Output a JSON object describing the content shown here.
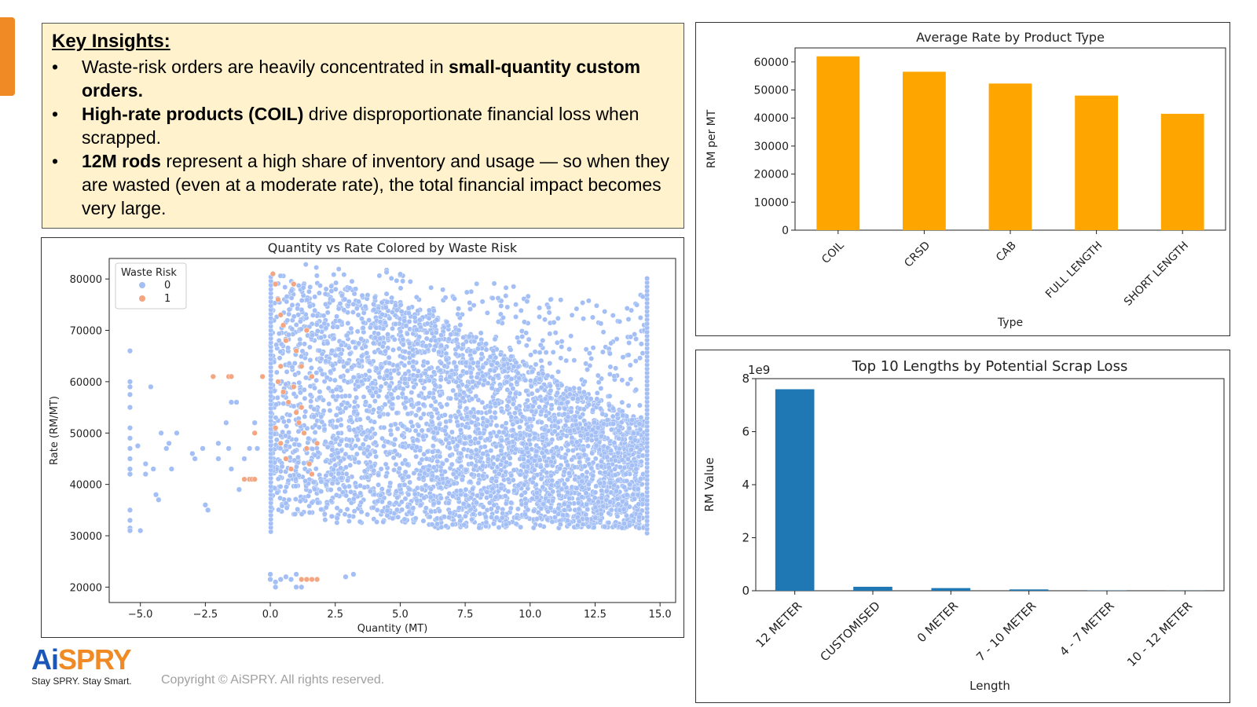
{
  "insights": {
    "heading": "Key Insights:",
    "bullets": [
      {
        "parts": [
          {
            "t": "Waste-risk orders are heavily concentrated in ",
            "b": false
          },
          {
            "t": "small-quantity custom orders.",
            "b": true
          }
        ]
      },
      {
        "parts": [
          {
            "t": "High-rate products (COIL)",
            "b": true
          },
          {
            "t": " drive disproportionate financial loss when scrapped.",
            "b": false
          }
        ]
      },
      {
        "parts": [
          {
            "t": "12M rods",
            "b": true
          },
          {
            "t": " represent a high share of inventory and usage — so when they are wasted (even at a moderate rate), the total financial impact becomes very large.",
            "b": false
          }
        ]
      }
    ]
  },
  "chart_data": [
    {
      "id": "avg-rate",
      "type": "bar",
      "title": "Average Rate by Product Type",
      "xlabel": "Type",
      "ylabel": "RM per MT",
      "categories": [
        "COIL",
        "CRSD",
        "CAB",
        "FULL LENGTH",
        "SHORT LENGTH"
      ],
      "values": [
        62000,
        56500,
        52300,
        48000,
        41500
      ],
      "ylim": [
        0,
        65000
      ],
      "yticks": [
        0,
        10000,
        20000,
        30000,
        40000,
        50000,
        60000
      ],
      "color": "#ffa500",
      "grid": false
    },
    {
      "id": "scatter",
      "type": "scatter",
      "title": "Quantity vs Rate Colored by Waste Risk",
      "xlabel": "Quantity (MT)",
      "ylabel": "Rate (RM/MT)",
      "xlim": [
        -6.2,
        15.6
      ],
      "ylim": [
        17000,
        84000
      ],
      "xticks": [
        -5.0,
        -2.5,
        0.0,
        2.5,
        5.0,
        7.5,
        10.0,
        12.5,
        15.0
      ],
      "yticks": [
        20000,
        30000,
        40000,
        50000,
        60000,
        70000,
        80000
      ],
      "legend": {
        "title": "Waste Risk",
        "position": "top-left",
        "entries": [
          {
            "label": "0",
            "color": "#a3bff5"
          },
          {
            "label": "1",
            "color": "#f4a582"
          }
        ]
      },
      "series": [
        {
          "name": "0",
          "color": "#a3bff5",
          "points": [
            [
              -5.4,
              66000
            ],
            [
              -5.4,
              60000
            ],
            [
              -5.4,
              59000
            ],
            [
              -5.4,
              57500
            ],
            [
              -5.4,
              55000
            ],
            [
              -5.4,
              51000
            ],
            [
              -5.4,
              49000
            ],
            [
              -5.4,
              47000
            ],
            [
              -5.4,
              45000
            ],
            [
              -5.4,
              43000
            ],
            [
              -5.4,
              42000
            ],
            [
              -5.4,
              35000
            ],
            [
              -5.4,
              33000
            ],
            [
              -5.4,
              31500
            ],
            [
              -5.4,
              31000
            ],
            [
              -5.1,
              47500
            ],
            [
              -5.0,
              31000
            ],
            [
              -4.8,
              44000
            ],
            [
              -4.8,
              42000
            ],
            [
              -4.6,
              59000
            ],
            [
              -4.5,
              43000
            ],
            [
              -4.4,
              38000
            ],
            [
              -4.3,
              37000
            ],
            [
              -4.2,
              50000
            ],
            [
              -4.0,
              47000
            ],
            [
              -3.9,
              48000
            ],
            [
              -3.8,
              43000
            ],
            [
              -3.6,
              50000
            ],
            [
              -3.0,
              46000
            ],
            [
              -2.9,
              45000
            ],
            [
              -2.6,
              47000
            ],
            [
              -2.5,
              36000
            ],
            [
              -2.4,
              35000
            ],
            [
              -2.0,
              45000
            ],
            [
              -2.0,
              48000
            ],
            [
              -1.7,
              52000
            ],
            [
              -1.6,
              47000
            ],
            [
              -1.5,
              56000
            ],
            [
              -1.5,
              43000
            ],
            [
              -1.3,
              56000
            ],
            [
              -1.2,
              39000
            ],
            [
              -1.0,
              45000
            ],
            [
              -0.8,
              47000
            ],
            [
              -0.6,
              52000
            ],
            [
              -0.5,
              47000
            ],
            [
              0.0,
              22500
            ],
            [
              0.0,
              21500
            ],
            [
              0.2,
              21000
            ],
            [
              0.2,
              20000
            ],
            [
              0.4,
              21500
            ],
            [
              0.6,
              22000
            ],
            [
              0.8,
              21500
            ],
            [
              1.0,
              22500
            ],
            [
              1.0,
              20000
            ],
            [
              1.2,
              20000
            ],
            [
              2.9,
              22000
            ],
            [
              3.2,
              22500
            ]
          ]
        },
        {
          "name": "1",
          "color": "#f4a582",
          "points": [
            [
              -2.2,
              61000
            ],
            [
              -1.6,
              61000
            ],
            [
              -1.5,
              61000
            ],
            [
              -1.0,
              41000
            ],
            [
              -0.8,
              41000
            ],
            [
              -0.7,
              41000
            ],
            [
              -0.6,
              41000
            ],
            [
              -0.6,
              50000
            ],
            [
              -0.3,
              61000
            ],
            [
              0.1,
              81000
            ],
            [
              0.2,
              79000
            ],
            [
              0.3,
              76000
            ],
            [
              0.4,
              73000
            ],
            [
              0.5,
              71000
            ],
            [
              0.6,
              68000
            ],
            [
              0.4,
              63000
            ],
            [
              0.3,
              60000
            ],
            [
              0.5,
              58000
            ],
            [
              0.7,
              56000
            ],
            [
              0.2,
              51000
            ],
            [
              0.4,
              48000
            ],
            [
              0.6,
              45000
            ],
            [
              0.8,
              43000
            ],
            [
              0.9,
              59000
            ],
            [
              1.0,
              54000
            ],
            [
              1.1,
              52000
            ],
            [
              1.2,
              55000
            ],
            [
              1.3,
              50000
            ],
            [
              1.4,
              47000
            ],
            [
              1.5,
              44000
            ],
            [
              1.6,
              42000
            ],
            [
              1.8,
              48000
            ],
            [
              1.0,
              66000
            ],
            [
              1.2,
              63000
            ],
            [
              1.4,
              70000
            ],
            [
              1.6,
              61000
            ],
            [
              0.9,
              79000
            ],
            [
              1.2,
              21500
            ],
            [
              1.4,
              21500
            ],
            [
              1.6,
              21500
            ],
            [
              1.8,
              21500
            ]
          ]
        }
      ],
      "dense_bulk": {
        "note_free": true,
        "band_top_edge": [
          [
            0.0,
            82000
          ],
          [
            1.0,
            83000
          ],
          [
            2.5,
            82500
          ],
          [
            4.0,
            82000
          ],
          [
            5.0,
            81500
          ],
          [
            7.5,
            79000
          ],
          [
            9.0,
            80000
          ],
          [
            10.0,
            77000
          ],
          [
            11.0,
            76000
          ],
          [
            12.5,
            76000
          ],
          [
            13.5,
            73000
          ],
          [
            14.5,
            80000
          ]
        ],
        "band_core": [
          [
            0.0,
            80000
          ],
          [
            2.5,
            79000
          ],
          [
            5.0,
            76000
          ],
          [
            7.5,
            70000
          ],
          [
            10.0,
            63000
          ],
          [
            12.5,
            57000
          ],
          [
            14.5,
            52000
          ]
        ]
      }
    },
    {
      "id": "top-lengths",
      "type": "bar",
      "title": "Top 10 Lengths by Potential Scrap Loss",
      "xlabel": "Length",
      "ylabel": "RM Value",
      "offset_label": "1e9",
      "categories": [
        "12 METER",
        "CUSTOMISED",
        "0 METER",
        "7 - 10 METER",
        "4 - 7 METER",
        "10 - 12 METER"
      ],
      "values": [
        7.6,
        0.15,
        0.1,
        0.05,
        0.01,
        0.005
      ],
      "ylim": [
        0,
        8
      ],
      "yticks": [
        0,
        2,
        4,
        6,
        8
      ],
      "color": "#1f77b4",
      "grid": false
    }
  ],
  "footer": {
    "logo_ai": "Ai",
    "logo_spry": "SPRY",
    "tagline": "Stay SPRY. Stay Smart.",
    "copyright": "Copyright © AiSPRY. All rights reserved."
  }
}
